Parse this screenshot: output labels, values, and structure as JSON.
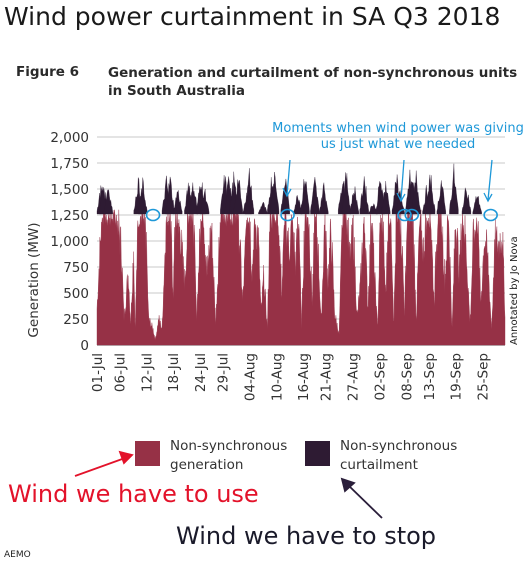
{
  "title": "Wind power curtainment in SA Q3 2018",
  "figure_label": "Figure 6",
  "figure_title": "Generation and curtailment of non-synchronous units in South Australia",
  "credit": "Annotated by Jo Nova",
  "source": "AEMO",
  "annotations": {
    "moments": "Moments when wind power was giving us just what we needed",
    "use": "Wind we have to use",
    "stop": "Wind we have to stop"
  },
  "legend": [
    {
      "label": "Non-synchronous generation",
      "color": "#963146"
    },
    {
      "label": "Non-synchronous curtailment",
      "color": "#2e1b33"
    }
  ],
  "colors": {
    "generation": "#963146",
    "curtailment": "#2e1b33",
    "annotation": "#1e98d8",
    "use_arrow": "#e3122a",
    "stop_arrow": "#2a1e3a"
  },
  "chart_data": {
    "type": "area",
    "xlabel": "",
    "ylabel": "Generation (MW)",
    "ylim": [
      0,
      2000
    ],
    "yticks": [
      "0",
      "250",
      "500",
      "750",
      "1,000",
      "1,250",
      "1,500",
      "1,750",
      "2,000"
    ],
    "ytick_values": [
      0,
      250,
      500,
      750,
      1000,
      1250,
      1500,
      1750,
      2000
    ],
    "xticks": [
      "01-Jul",
      "06-Jul",
      "12-Jul",
      "18-Jul",
      "24-Jul",
      "29-Jul",
      "04-Aug",
      "10-Aug",
      "16-Aug",
      "21-Aug",
      "27-Aug",
      "02-Sep",
      "08-Sep",
      "13-Sep",
      "19-Sep",
      "25-Sep"
    ],
    "xtick_days": [
      1,
      6,
      12,
      18,
      24,
      29,
      35,
      41,
      47,
      52,
      58,
      64,
      70,
      75,
      81,
      87
    ],
    "x_range": [
      1,
      92
    ],
    "grid": "horizontal",
    "series": [
      {
        "name": "Non-synchronous generation",
        "x": [
          1.0,
          2.0,
          2.5,
          3.5,
          5.5,
          6.5,
          7.0,
          8.0,
          8.5,
          9.2,
          9.5,
          10.2,
          11.2,
          12.0,
          12.5,
          13.5,
          14.0,
          14.8,
          15.5,
          16.5,
          17.3,
          18.0,
          18.5,
          19.5,
          20.5,
          21.5,
          22.5,
          23.2,
          24.2,
          24.8,
          25.5,
          26.5,
          27.5,
          28.5,
          29.5,
          30.5,
          31.5,
          32.5,
          33.5,
          34.5,
          35.0,
          35.6,
          36.2,
          37.0,
          37.6,
          38.2,
          39.0,
          39.6,
          40.0,
          40.6,
          41.4,
          42.2,
          43.0,
          43.8,
          44.6,
          45.3,
          46.0,
          46.6,
          47.4,
          48.2,
          49.0,
          49.6,
          50.3,
          51.0,
          51.8,
          52.5,
          53.2,
          54.0,
          55.0,
          55.8,
          56.6,
          57.4,
          58.2,
          59.0,
          59.8,
          60.6,
          61.4,
          62.2,
          63.0,
          63.6,
          64.2,
          64.8,
          65.4,
          66.0,
          66.6,
          67.2,
          67.8,
          68.4,
          69.0,
          69.6,
          70.2,
          70.8,
          71.4,
          72.2,
          73.0,
          73.8,
          74.6,
          75.4,
          76.2,
          77.0,
          77.8,
          78.6,
          79.4,
          80.2,
          81.0,
          81.8,
          82.6,
          83.4,
          84.2,
          85.0,
          85.8,
          86.6,
          87.4,
          88.2,
          89.0,
          89.8,
          90.6,
          91.4,
          92.0
        ],
        "y": [
          350,
          1200,
          1290,
          1280,
          1250,
          900,
          250,
          700,
          200,
          950,
          120,
          1270,
          1280,
          1000,
          250,
          150,
          50,
          250,
          150,
          1290,
          1280,
          500,
          1280,
          1150,
          600,
          1290,
          1280,
          250,
          1280,
          1250,
          650,
          1150,
          200,
          1290,
          1280,
          1300,
          1290,
          1280,
          400,
          1280,
          1290,
          700,
          1250,
          1000,
          300,
          650,
          150,
          1280,
          1250,
          1300,
          1280,
          500,
          1300,
          900,
          1200,
          750,
          1280,
          150,
          1300,
          1250,
          400,
          1280,
          950,
          200,
          1250,
          600,
          1100,
          300,
          100,
          1280,
          1300,
          800,
          1100,
          250,
          600,
          1300,
          350,
          1250,
          600,
          150,
          1280,
          1100,
          450,
          1280,
          1250,
          200,
          1280,
          1300,
          1000,
          300,
          1280,
          1280,
          1300,
          250,
          1200,
          900,
          1280,
          1280,
          400,
          1280,
          1300,
          600,
          1280,
          150,
          1250,
          700,
          1280,
          900,
          200,
          1100,
          1280,
          400,
          1050,
          800,
          150,
          1000,
          950,
          1100,
          300
        ]
      },
      {
        "name": "Non-synchronous curtailment",
        "x": [
          2.0,
          2.5,
          3.5,
          10.2,
          11.2,
          16.5,
          17.3,
          19.0,
          21.5,
          22.5,
          24.2,
          25.0,
          29.5,
          30.5,
          31.5,
          32.5,
          34.5,
          35.0,
          38.0,
          40.0,
          40.6,
          43.0,
          45.8,
          47.4,
          49.6,
          51.6,
          55.8,
          56.6,
          58.4,
          60.6,
          62.6,
          64.2,
          65.4,
          67.8,
          68.6,
          70.8,
          71.4,
          72.2,
          74.6,
          75.4,
          77.8,
          80.6,
          83.4,
          85.8
        ],
        "y": [
          1620,
          1600,
          1600,
          1650,
          1620,
          1650,
          1680,
          1550,
          1640,
          1620,
          1700,
          1550,
          1700,
          1720,
          1680,
          1700,
          1500,
          1720,
          1400,
          1700,
          1750,
          1680,
          1500,
          1720,
          1650,
          1600,
          1700,
          1720,
          1580,
          1700,
          1400,
          1680,
          1620,
          1700,
          1500,
          1720,
          1750,
          1700,
          1580,
          1700,
          1650,
          1750,
          1600,
          1500
        ]
      }
    ]
  }
}
